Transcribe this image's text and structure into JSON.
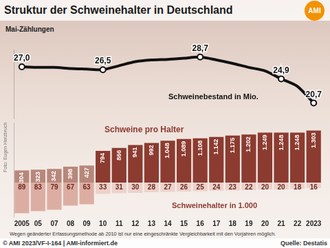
{
  "header": {
    "title": "Struktur der Schweinehalter in Deutschland",
    "logo": "AMI",
    "subtitle": "Mai-Zählungen"
  },
  "chart_data": [
    {
      "type": "line",
      "categories": [
        "2005",
        "05",
        "07",
        "08",
        "09",
        "10",
        "11",
        "12",
        "13",
        "14",
        "15",
        "16",
        "17",
        "18",
        "19",
        "20",
        "21",
        "22",
        "2023"
      ],
      "series": [
        {
          "name": "Schweinebestand in Mio.",
          "color": "#111111",
          "marker": "circle",
          "values": [
            27.0,
            26.9,
            26.9,
            26.7,
            26.6,
            26.5,
            27.2,
            27.9,
            28.2,
            28.3,
            28.5,
            28.7,
            28.2,
            27.6,
            26.9,
            26.3,
            24.9,
            23.6,
            20.7
          ],
          "value_labels": [
            "27,0",
            null,
            null,
            null,
            null,
            "26,5",
            null,
            null,
            null,
            null,
            null,
            "28,7",
            null,
            null,
            null,
            null,
            "24,9",
            null,
            "20,7"
          ]
        }
      ],
      "ylim": [
        18,
        30
      ],
      "data_labels": true,
      "tick_labels": false,
      "grid": false
    },
    {
      "type": "bar",
      "categories": [
        "2005",
        "05",
        "07",
        "08",
        "09",
        "10",
        "11",
        "12",
        "13",
        "14",
        "15",
        "16",
        "17",
        "18",
        "19",
        "20",
        "21",
        "22",
        "2023"
      ],
      "series": [
        {
          "name": "Schweine pro Halter",
          "colors": [
            "#b8877c",
            "#b8877c",
            "#b8877c",
            "#b8877c",
            "#b8877c",
            "#8c3b30",
            "#8c3b30",
            "#8c3b30",
            "#8c3b30",
            "#8c3b30",
            "#8c3b30",
            "#8c3b30",
            "#8c3b30",
            "#8c3b30",
            "#8c3b30",
            "#8c3b30",
            "#8c3b30",
            "#8c3b30",
            "#8c3b30"
          ],
          "values": [
            304,
            323,
            342,
            398,
            427,
            794,
            866,
            941,
            992,
            1048,
            1089,
            1108,
            1142,
            1175,
            1202,
            1249,
            1248,
            1248,
            1303
          ],
          "value_labels": [
            "304",
            "323",
            "342",
            "398",
            "427",
            "794",
            "866",
            "941",
            "992",
            "1.048",
            "1.089",
            "1.108",
            "1.142",
            "1.175",
            "1.202",
            "1.249",
            "1.248",
            "1.248",
            "1.303"
          ]
        }
      ],
      "ylim": [
        0,
        1500
      ],
      "data_labels": true,
      "tick_labels": false,
      "grid": false
    },
    {
      "type": "bar",
      "categories": [
        "2005",
        "05",
        "07",
        "08",
        "09",
        "10",
        "11",
        "12",
        "13",
        "14",
        "15",
        "16",
        "17",
        "18",
        "19",
        "20",
        "21",
        "22",
        "2023"
      ],
      "series": [
        {
          "name": "Schweinehalter in 1.000",
          "colors": [
            "#dcaea3",
            "#dcaea3",
            "#dcaea3",
            "#dcaea3",
            "#dcaea3",
            "#ecd2cb",
            "#ecd2cb",
            "#ecd2cb",
            "#ecd2cb",
            "#ecd2cb",
            "#ecd2cb",
            "#ecd2cb",
            "#ecd2cb",
            "#ecd2cb",
            "#ecd2cb",
            "#ecd2cb",
            "#ecd2cb",
            "#ecd2cb",
            "#ecd2cb"
          ],
          "values": [
            89,
            83,
            79,
            67,
            63,
            33,
            31,
            30,
            28,
            27,
            26,
            25,
            24,
            23,
            22,
            20,
            20,
            18,
            16
          ]
        }
      ],
      "ylim": [
        0,
        100
      ],
      "data_labels": true,
      "tick_labels": "x",
      "grid": false
    }
  ],
  "notes": {
    "method": "Wegen geänderter Erfassungsmethode ab 2010 ist nur eine eingeschränkte Vergleichbarkeit mit den Vorjahren möglich.",
    "photo": "Foto: Eugen Herzbruch",
    "copyright": "© AMI 2023/VF-I-164 | AMI-informiert.de",
    "source": "Quelle: Destatis"
  }
}
